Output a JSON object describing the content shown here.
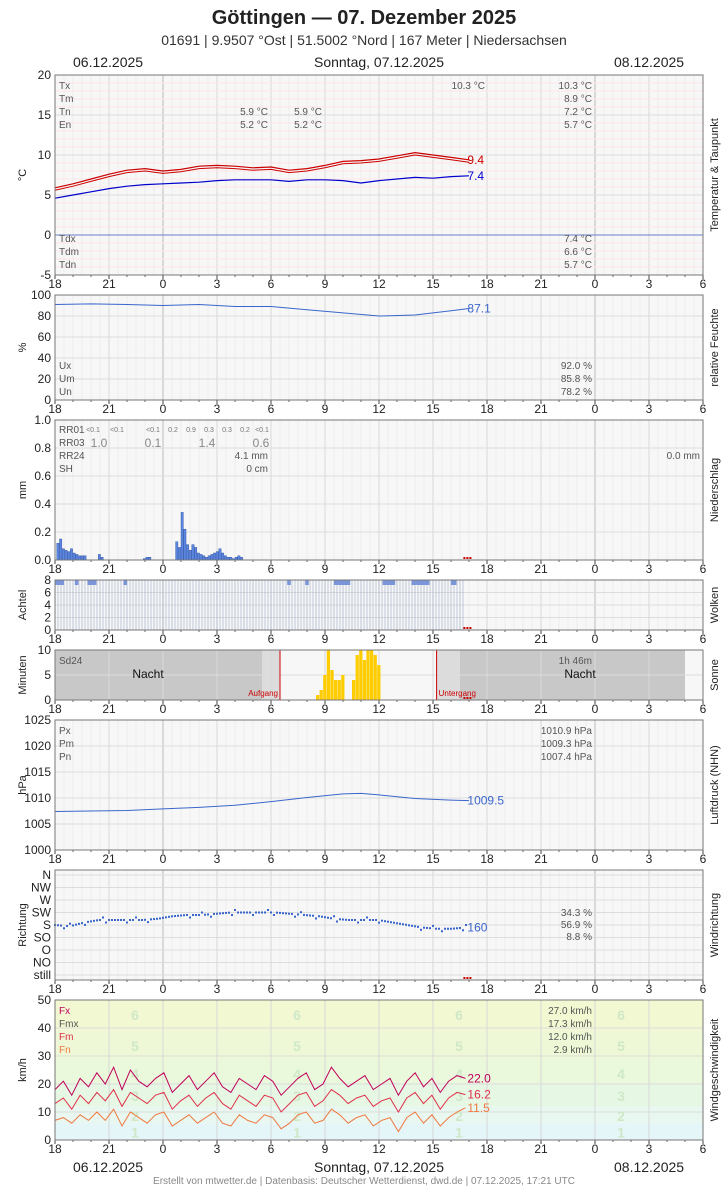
{
  "header": {
    "title": "Göttingen  —  07. Dezember 2025",
    "subtitle": "01691  |  9.9507 °Ost  |  51.5002 °Nord  |  167 Meter  |  Niedersachsen"
  },
  "dates": {
    "left": "06.12.2025",
    "center": "Sonntag, 07.12.2025",
    "right": "08.12.2025"
  },
  "footer": "Erstellt von mtwetter.de | Datenbasis: Deutscher Wetterdienst, dwd.de | 07.12.2025, 17:21 UTC",
  "x_ticks": [
    "18",
    "21",
    "0",
    "3",
    "6",
    "9",
    "12",
    "15",
    "18",
    "21",
    "0",
    "3",
    "6"
  ],
  "colors": {
    "temp": "#e00000",
    "dew": "#0000cc",
    "blue": "#3a66cc",
    "bar": "#5a86e0",
    "sun": "#ffcc00",
    "wind_fx": "#c0005a",
    "wind_fm": "#e0304a",
    "wind_fn": "#f07840",
    "red": "#cc0000"
  },
  "chart_data": [
    {
      "name": "temp",
      "type": "line",
      "side_label": "Temperatur & Taupunkt",
      "ylabel": "°C",
      "ylim": [
        -5,
        20
      ],
      "yticks": [
        "20",
        "15",
        "10",
        "5",
        "0",
        "-5"
      ],
      "grid": true,
      "info": [
        {
          "row": 0,
          "label": "Tx",
          "v1": "",
          "v2": "",
          "v3": "10.3 °C",
          "v4": "10.3 °C"
        },
        {
          "row": 1,
          "label": "Tm",
          "v1": "",
          "v2": "",
          "v3": "",
          "v4": "8.9 °C"
        },
        {
          "row": 2,
          "label": "Tn",
          "v1": "5.9 °C",
          "v2": "5.9 °C",
          "v3": "",
          "v4": "7.2 °C"
        },
        {
          "row": 3,
          "label": "En",
          "v1": "5.2 °C",
          "v2": "5.2 °C",
          "v3": "",
          "v4": "5.7 °C"
        }
      ],
      "info2": [
        {
          "label": "Tdx",
          "v4": "7.4 °C"
        },
        {
          "label": "Tdm",
          "v4": "6.6 °C"
        },
        {
          "label": "Tdn",
          "v4": "5.7 °C"
        }
      ],
      "end_labels": [
        {
          "text": "9.4",
          "value": 9.4,
          "color": "red"
        },
        {
          "text": "7.4",
          "value": 7.4,
          "color": "dew"
        }
      ],
      "series": [
        {
          "name": "T",
          "color": "red",
          "x": [
            0,
            1,
            2,
            3,
            4,
            5,
            6,
            7,
            8,
            9,
            10,
            11,
            12,
            13,
            14,
            15,
            16,
            17,
            18,
            19,
            20,
            21,
            22,
            23
          ],
          "values": [
            5.9,
            6.4,
            7.0,
            7.6,
            8.1,
            8.3,
            8.0,
            8.2,
            8.6,
            8.7,
            8.6,
            8.4,
            8.5,
            8.1,
            8.3,
            8.7,
            9.2,
            9.3,
            9.5,
            9.9,
            10.3,
            10.0,
            9.7,
            9.4
          ]
        },
        {
          "name": "Td",
          "color": "dew",
          "x": [
            0,
            1,
            2,
            3,
            4,
            5,
            6,
            7,
            8,
            9,
            10,
            11,
            12,
            13,
            14,
            15,
            16,
            17,
            18,
            19,
            20,
            21,
            22,
            23
          ],
          "values": [
            4.6,
            5.0,
            5.4,
            5.8,
            6.1,
            6.3,
            6.4,
            6.5,
            6.6,
            6.8,
            6.9,
            6.9,
            6.9,
            6.7,
            6.9,
            6.9,
            6.8,
            6.5,
            6.8,
            7.0,
            7.2,
            7.1,
            7.3,
            7.4
          ]
        }
      ]
    },
    {
      "name": "humidity",
      "type": "line",
      "side_label": "relative Feuchte",
      "ylabel": "%",
      "ylim": [
        0,
        100
      ],
      "yticks": [
        "100",
        "80",
        "60",
        "40",
        "20",
        "0"
      ],
      "grid": true,
      "info": [
        {
          "label": "Ux",
          "v4": "92.0 %"
        },
        {
          "label": "Um",
          "v4": "85.8 %"
        },
        {
          "label": "Un",
          "v4": "78.2 %"
        }
      ],
      "end_labels": [
        {
          "text": "87.1",
          "value": 87.1,
          "color": "blue"
        }
      ],
      "series": [
        {
          "name": "U",
          "color": "blue",
          "x": [
            0,
            2,
            4,
            6,
            8,
            10,
            12,
            14,
            16,
            18,
            20,
            22,
            23
          ],
          "values": [
            91,
            91.5,
            91,
            90,
            91,
            89,
            89,
            86,
            83,
            80,
            81,
            85,
            87.1
          ]
        }
      ]
    },
    {
      "name": "precip",
      "type": "bar",
      "side_label": "Niederschlag",
      "ylabel": "mm",
      "ylim": [
        0,
        1.0
      ],
      "yticks": [
        "1.0",
        "0.8",
        "0.6",
        "0.4",
        "0.2",
        "0.0"
      ],
      "grid": true,
      "rr01": [
        "<0.1",
        "<0.1",
        "<0.1",
        "0.2",
        "0.9",
        "0.3",
        "0.3",
        "0.2",
        "<0.1"
      ],
      "rr03": [
        "1.0",
        "0.1",
        "1.4",
        "0.6"
      ],
      "rr_labels": [
        "RR01",
        "RR03",
        "RR24",
        "SH"
      ],
      "rr24": "4.1 mm",
      "sh": "0 cm",
      "rr24_right": "0.0 mm",
      "bars": [
        {
          "x": 0.1,
          "v": 0.12
        },
        {
          "x": 0.25,
          "v": 0.15
        },
        {
          "x": 0.4,
          "v": 0.08
        },
        {
          "x": 0.55,
          "v": 0.07
        },
        {
          "x": 0.7,
          "v": 0.06
        },
        {
          "x": 0.85,
          "v": 0.08
        },
        {
          "x": 1.0,
          "v": 0.05
        },
        {
          "x": 1.15,
          "v": 0.04
        },
        {
          "x": 1.3,
          "v": 0.03
        },
        {
          "x": 1.45,
          "v": 0.03
        },
        {
          "x": 1.6,
          "v": 0.03
        },
        {
          "x": 2.4,
          "v": 0.04
        },
        {
          "x": 2.55,
          "v": 0.02
        },
        {
          "x": 4.9,
          "v": 0.01
        },
        {
          "x": 5.05,
          "v": 0.02
        },
        {
          "x": 5.2,
          "v": 0.02
        },
        {
          "x": 6.7,
          "v": 0.13
        },
        {
          "x": 6.85,
          "v": 0.09
        },
        {
          "x": 7.0,
          "v": 0.34
        },
        {
          "x": 7.15,
          "v": 0.22
        },
        {
          "x": 7.3,
          "v": 0.11
        },
        {
          "x": 7.45,
          "v": 0.07
        },
        {
          "x": 7.6,
          "v": 0.11
        },
        {
          "x": 7.75,
          "v": 0.09
        },
        {
          "x": 7.9,
          "v": 0.05
        },
        {
          "x": 8.05,
          "v": 0.04
        },
        {
          "x": 8.2,
          "v": 0.03
        },
        {
          "x": 8.35,
          "v": 0.02
        },
        {
          "x": 8.5,
          "v": 0.03
        },
        {
          "x": 8.65,
          "v": 0.04
        },
        {
          "x": 8.8,
          "v": 0.05
        },
        {
          "x": 8.95,
          "v": 0.06
        },
        {
          "x": 9.1,
          "v": 0.08
        },
        {
          "x": 9.25,
          "v": 0.05
        },
        {
          "x": 9.4,
          "v": 0.03
        },
        {
          "x": 9.55,
          "v": 0.02
        },
        {
          "x": 9.7,
          "v": 0.02
        },
        {
          "x": 9.85,
          "v": 0.01
        },
        {
          "x": 10.0,
          "v": 0.02
        },
        {
          "x": 10.15,
          "v": 0.03
        },
        {
          "x": 10.3,
          "v": 0.02
        }
      ]
    },
    {
      "name": "clouds",
      "type": "bar",
      "side_label": "Wolken",
      "ylabel": "Achtel",
      "ylim": [
        0,
        8
      ],
      "yticks": [
        "8",
        "6",
        "4",
        "2",
        "0"
      ],
      "value_all": 8
    },
    {
      "name": "sun",
      "type": "bar",
      "side_label": "Sonne",
      "ylabel": "Minuten",
      "ylim": [
        0,
        10
      ],
      "yticks": [
        "10",
        "5",
        "0"
      ],
      "sd24_label": "Sd24",
      "sd24": "1h 46m",
      "night": "Nacht",
      "rise": "Aufgang",
      "set": "Untergang",
      "rise_x": 12.5,
      "set_x": 21.2,
      "bars": [
        {
          "x": 14.5,
          "v": 1
        },
        {
          "x": 14.7,
          "v": 2
        },
        {
          "x": 14.9,
          "v": 5
        },
        {
          "x": 15.1,
          "v": 10
        },
        {
          "x": 15.3,
          "v": 6
        },
        {
          "x": 15.5,
          "v": 4
        },
        {
          "x": 15.7,
          "v": 4
        },
        {
          "x": 15.9,
          "v": 5
        },
        {
          "x": 16.5,
          "v": 4
        },
        {
          "x": 16.7,
          "v": 9
        },
        {
          "x": 16.9,
          "v": 10
        },
        {
          "x": 17.1,
          "v": 8
        },
        {
          "x": 17.3,
          "v": 10
        },
        {
          "x": 17.5,
          "v": 10
        },
        {
          "x": 17.7,
          "v": 9
        },
        {
          "x": 17.9,
          "v": 7
        }
      ]
    },
    {
      "name": "pressure",
      "type": "line",
      "side_label": "Luftdruck (NHN)",
      "ylabel": "hPa",
      "ylim": [
        1000,
        1025
      ],
      "yticks": [
        "1025",
        "1020",
        "1015",
        "1010",
        "1005",
        "1000"
      ],
      "grid": true,
      "info": [
        {
          "label": "Px",
          "v4": "1010.9 hPa"
        },
        {
          "label": "Pm",
          "v4": "1009.3 hPa"
        },
        {
          "label": "Pn",
          "v4": "1007.4 hPa"
        }
      ],
      "end_labels": [
        {
          "text": "1009.5",
          "value": 1009.5,
          "color": "blue"
        }
      ],
      "series": [
        {
          "name": "P",
          "color": "blue",
          "x": [
            0,
            2,
            4,
            6,
            8,
            10,
            12,
            14,
            16,
            17,
            18,
            20,
            22,
            23
          ],
          "values": [
            1007.4,
            1007.5,
            1007.6,
            1007.9,
            1008.2,
            1008.6,
            1009.3,
            1010.1,
            1010.8,
            1010.9,
            1010.6,
            1009.9,
            1009.6,
            1009.5
          ]
        }
      ]
    },
    {
      "name": "winddir",
      "type": "scatter",
      "side_label": "Windrichtung",
      "ylabel": "Richtung",
      "ylabels": [
        "N",
        "NW",
        "W",
        "SW",
        "S",
        "SO",
        "O",
        "NO",
        "still"
      ],
      "info": [
        {
          "v4": "34.3 %"
        },
        {
          "v4": "56.9 %"
        },
        {
          "v4": "8.8 %"
        }
      ],
      "end_label": "160",
      "values": [
        4,
        4.1,
        3.8,
        3.6,
        3.6,
        3.6,
        3.6,
        3.5,
        3.3,
        3.2,
        3.2,
        3.1,
        3,
        3,
        3,
        3,
        3.1,
        3.2,
        3.3,
        3.5,
        3.6,
        3.6,
        3.6,
        3.8,
        4,
        4.2,
        4.3,
        4.3,
        4.2
      ]
    },
    {
      "name": "wind",
      "type": "line",
      "side_label": "Windgeschwindigkeit",
      "ylabel": "km/h",
      "ylim": [
        0,
        50
      ],
      "yticks": [
        "50",
        "40",
        "30",
        "20",
        "10",
        "0"
      ],
      "bft": [
        "6",
        "5",
        "4",
        "3",
        "2",
        "1"
      ],
      "info": [
        {
          "label": "Fx",
          "v4": "27.0 km/h",
          "color": "wind_fx"
        },
        {
          "label": "Fmx",
          "v4": "17.3 km/h",
          "color": "#555"
        },
        {
          "label": "Fm",
          "v4": "12.0 km/h",
          "color": "wind_fm"
        },
        {
          "label": "Fn",
          "v4": "2.9 km/h",
          "color": "wind_fn"
        }
      ],
      "end_labels": [
        {
          "text": "22.0",
          "value": 22.0,
          "color": "wind_fx"
        },
        {
          "text": "16.2",
          "value": 16.2,
          "color": "wind_fm"
        },
        {
          "text": "11.5",
          "value": 11.5,
          "color": "wind_fn"
        }
      ],
      "series": [
        {
          "name": "Fx",
          "color": "wind_fx",
          "values": [
            18,
            21,
            16,
            22,
            19,
            24,
            20,
            26,
            18,
            25,
            21,
            19,
            22,
            24,
            17,
            20,
            23,
            18,
            21,
            24,
            19,
            17,
            22,
            20,
            18,
            23,
            21,
            16,
            19,
            22,
            24,
            18,
            20,
            26,
            22,
            19,
            21,
            23,
            18,
            20,
            22,
            16,
            21,
            24,
            19,
            22,
            17,
            21,
            23,
            22
          ]
        },
        {
          "name": "Fm",
          "color": "wind_fm",
          "values": [
            13,
            15,
            11,
            16,
            13,
            17,
            14,
            18,
            12,
            17,
            15,
            13,
            16,
            17,
            11,
            14,
            16,
            12,
            15,
            17,
            13,
            11,
            16,
            14,
            12,
            16,
            15,
            10,
            13,
            16,
            17,
            12,
            14,
            18,
            16,
            13,
            15,
            16,
            12,
            14,
            15,
            10,
            15,
            17,
            13,
            16,
            11,
            15,
            17,
            16.2
          ]
        },
        {
          "name": "Fn",
          "color": "wind_fn",
          "values": [
            7,
            8,
            6,
            9,
            7,
            10,
            7,
            11,
            5,
            10,
            8,
            6,
            9,
            10,
            5,
            7,
            9,
            6,
            8,
            10,
            6,
            5,
            9,
            7,
            6,
            9,
            8,
            4,
            6,
            9,
            10,
            6,
            7,
            11,
            9,
            6,
            8,
            9,
            5,
            7,
            8,
            3,
            8,
            10,
            6,
            9,
            5,
            8,
            10,
            11.5
          ]
        }
      ]
    }
  ]
}
